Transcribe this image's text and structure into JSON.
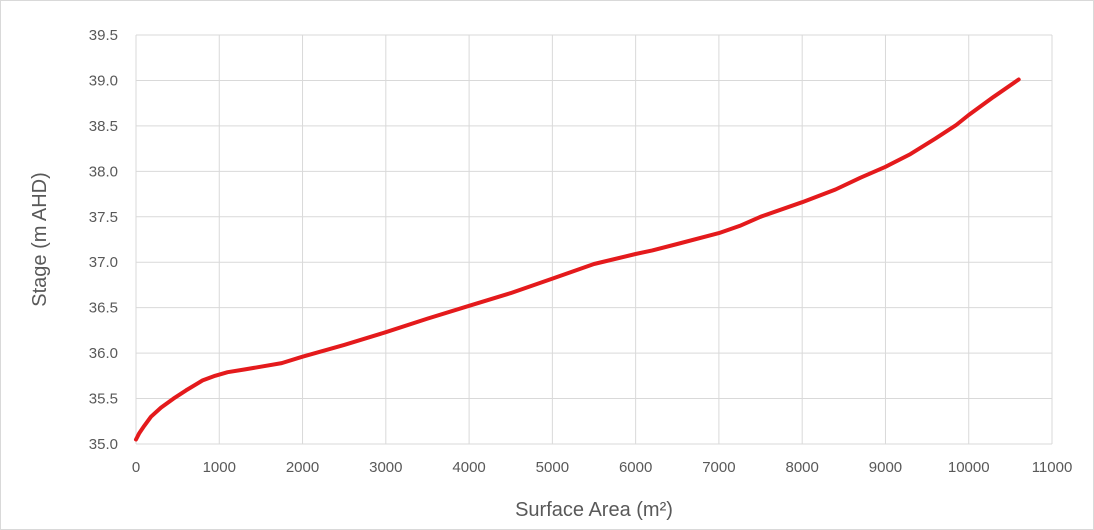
{
  "chart_data": {
    "type": "line",
    "title": "",
    "xlabel": "Surface Area (m²)",
    "ylabel": "Stage (m AHD)",
    "xlim": [
      0,
      11000
    ],
    "ylim": [
      35.0,
      39.5
    ],
    "x_ticks": [
      "0",
      "1000",
      "2000",
      "3000",
      "4000",
      "5000",
      "6000",
      "7000",
      "8000",
      "9000",
      "10000",
      "11000"
    ],
    "y_ticks": [
      "35.0",
      "35.5",
      "36.0",
      "36.5",
      "37.0",
      "37.5",
      "38.0",
      "38.5",
      "39.0",
      "39.5"
    ],
    "grid": true,
    "legend": "none",
    "series": [
      {
        "color": "#e41a1c",
        "x": [
          0,
          40,
          100,
          180,
          300,
          450,
          600,
          800,
          950,
          1100,
          1300,
          1500,
          1750,
          2000,
          2500,
          3000,
          3500,
          4000,
          4500,
          5000,
          5500,
          6000,
          6200,
          6500,
          7000,
          7250,
          7500,
          8000,
          8400,
          8700,
          9000,
          9300,
          9600,
          9850,
          10000,
          10300,
          10600
        ],
        "y": [
          35.05,
          35.12,
          35.2,
          35.3,
          35.4,
          35.5,
          35.59,
          35.7,
          35.75,
          35.79,
          35.82,
          35.85,
          35.89,
          35.96,
          36.09,
          36.23,
          36.38,
          36.52,
          36.66,
          36.82,
          36.98,
          37.09,
          37.13,
          37.2,
          37.32,
          37.4,
          37.5,
          37.66,
          37.8,
          37.93,
          38.05,
          38.19,
          38.36,
          38.51,
          38.62,
          38.82,
          39.01
        ]
      }
    ]
  }
}
